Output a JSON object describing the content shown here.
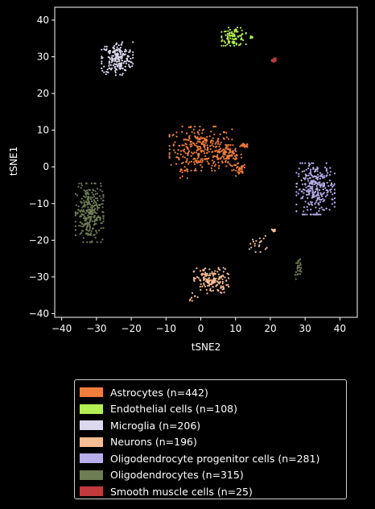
{
  "chart_data": {
    "type": "scatter",
    "title": "",
    "xlabel": "tSNE2",
    "ylabel": "tSNE1",
    "xlim": [
      -42,
      45
    ],
    "ylim": [
      -41,
      43.5
    ],
    "xticks": [
      -40,
      -30,
      -20,
      -10,
      0,
      10,
      20,
      30,
      40
    ],
    "yticks": [
      -40,
      -30,
      -20,
      -10,
      0,
      10,
      20,
      30,
      40
    ],
    "grid": false,
    "legend_position": "below",
    "series": [
      {
        "name": "Astrocytes (n=442)",
        "color": "#f07d3c",
        "clusters": [
          {
            "cx": 0,
            "cy": 5,
            "rx": 9,
            "ry": 6,
            "n": 300
          },
          {
            "cx": 8,
            "cy": 3,
            "rx": 4,
            "ry": 3,
            "n": 80
          },
          {
            "cx": 11,
            "cy": -1,
            "rx": 2,
            "ry": 2,
            "n": 30
          },
          {
            "cx": 12.5,
            "cy": 5.8,
            "rx": 1.2,
            "ry": 0.5,
            "n": 20
          },
          {
            "cx": -5,
            "cy": -2,
            "rx": 2.5,
            "ry": 2,
            "n": 12
          }
        ]
      },
      {
        "name": "Endothelial cells (n=108)",
        "color": "#b3ee52",
        "clusters": [
          {
            "cx": 9.5,
            "cy": 35.5,
            "rx": 3.5,
            "ry": 2.5,
            "n": 100
          },
          {
            "cx": 14.5,
            "cy": 35.3,
            "rx": 0.5,
            "ry": 0.4,
            "n": 8
          }
        ]
      },
      {
        "name": "Microglia (n=206)",
        "color": "#dcd9ee",
        "clusters": [
          {
            "cx": -24,
            "cy": 29.5,
            "rx": 4.5,
            "ry": 4.5,
            "n": 206
          }
        ]
      },
      {
        "name": "Neurons (n=196)",
        "color": "#f9bd95",
        "clusters": [
          {
            "cx": 3,
            "cy": -31,
            "rx": 5,
            "ry": 3.5,
            "n": 160
          },
          {
            "cx": 16.5,
            "cy": -21,
            "rx": 2.5,
            "ry": 2.2,
            "n": 20
          },
          {
            "cx": 21,
            "cy": -17.3,
            "rx": 0.6,
            "ry": 0.4,
            "n": 8
          },
          {
            "cx": -2,
            "cy": -35,
            "rx": 1.5,
            "ry": 1.5,
            "n": 8
          }
        ]
      },
      {
        "name": "Oligodendrocyte progenitor cells (n=281)",
        "color": "#b8aeea",
        "clusters": [
          {
            "cx": 33,
            "cy": -6,
            "rx": 5.5,
            "ry": 7,
            "n": 281
          }
        ]
      },
      {
        "name": "Oligodendrocytes (n=315)",
        "color": "#6f7d55",
        "clusters": [
          {
            "cx": -32,
            "cy": -12.5,
            "rx": 4,
            "ry": 8,
            "n": 290
          },
          {
            "cx": 28,
            "cy": -28,
            "rx": 0.9,
            "ry": 2.8,
            "n": 25
          }
        ]
      },
      {
        "name": "Smooth muscle cells (n=25)",
        "color": "#c23a3c",
        "clusters": [
          {
            "cx": 21,
            "cy": 29,
            "rx": 0.6,
            "ry": 0.6,
            "n": 25
          }
        ]
      }
    ]
  }
}
